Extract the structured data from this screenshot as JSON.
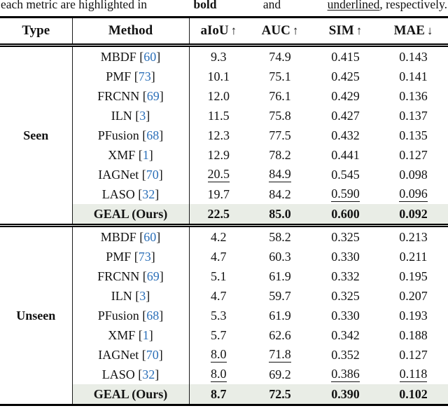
{
  "caption": {
    "part1": "each metric are highlighted in",
    "bold_word": "bold",
    "part2": "and",
    "underlined_word": "underlined",
    "part3": ", respectively."
  },
  "colors": {
    "accent_blue": "#2b6fb8",
    "highlight_row": "#e9ede6",
    "rule_black": "#000000"
  },
  "table": {
    "headers": [
      {
        "label": "Type",
        "arrow": ""
      },
      {
        "label": "Method",
        "arrow": ""
      },
      {
        "label": "aIoU",
        "arrow": "↑"
      },
      {
        "label": "AUC",
        "arrow": "↑"
      },
      {
        "label": "SIM",
        "arrow": "↑"
      },
      {
        "label": "MAE",
        "arrow": "↓"
      }
    ],
    "sections": [
      {
        "type": "Seen",
        "rows": [
          {
            "method": "MBDF",
            "ref": "60",
            "values": [
              "9.3",
              "74.9",
              "0.415",
              "0.143"
            ],
            "underline": [
              false,
              false,
              false,
              false
            ],
            "bold": false,
            "highlight": false
          },
          {
            "method": "PMF",
            "ref": "73",
            "values": [
              "10.1",
              "75.1",
              "0.425",
              "0.141"
            ],
            "underline": [
              false,
              false,
              false,
              false
            ],
            "bold": false,
            "highlight": false
          },
          {
            "method": "FRCNN",
            "ref": "69",
            "values": [
              "12.0",
              "76.1",
              "0.429",
              "0.136"
            ],
            "underline": [
              false,
              false,
              false,
              false
            ],
            "bold": false,
            "highlight": false
          },
          {
            "method": "ILN",
            "ref": "3",
            "values": [
              "11.5",
              "75.8",
              "0.427",
              "0.137"
            ],
            "underline": [
              false,
              false,
              false,
              false
            ],
            "bold": false,
            "highlight": false
          },
          {
            "method": "PFusion",
            "ref": "68",
            "values": [
              "12.3",
              "77.5",
              "0.432",
              "0.135"
            ],
            "underline": [
              false,
              false,
              false,
              false
            ],
            "bold": false,
            "highlight": false
          },
          {
            "method": "XMF",
            "ref": "1",
            "values": [
              "12.9",
              "78.2",
              "0.441",
              "0.127"
            ],
            "underline": [
              false,
              false,
              false,
              false
            ],
            "bold": false,
            "highlight": false
          },
          {
            "method": "IAGNet",
            "ref": "70",
            "values": [
              "20.5",
              "84.9",
              "0.545",
              "0.098"
            ],
            "underline": [
              true,
              true,
              false,
              false
            ],
            "bold": false,
            "highlight": false
          },
          {
            "method": "LASO",
            "ref": "32",
            "values": [
              "19.7",
              "84.2",
              "0.590",
              "0.096"
            ],
            "underline": [
              false,
              false,
              true,
              true
            ],
            "bold": false,
            "highlight": false
          },
          {
            "method": "GEAL (Ours)",
            "ref": null,
            "values": [
              "22.5",
              "85.0",
              "0.600",
              "0.092"
            ],
            "underline": [
              false,
              false,
              false,
              false
            ],
            "bold": true,
            "highlight": true
          }
        ]
      },
      {
        "type": "Unseen",
        "rows": [
          {
            "method": "MBDF",
            "ref": "60",
            "values": [
              "4.2",
              "58.2",
              "0.325",
              "0.213"
            ],
            "underline": [
              false,
              false,
              false,
              false
            ],
            "bold": false,
            "highlight": false
          },
          {
            "method": "PMF",
            "ref": "73",
            "values": [
              "4.7",
              "60.3",
              "0.330",
              "0.211"
            ],
            "underline": [
              false,
              false,
              false,
              false
            ],
            "bold": false,
            "highlight": false
          },
          {
            "method": "FRCNN",
            "ref": "69",
            "values": [
              "5.1",
              "61.9",
              "0.332",
              "0.195"
            ],
            "underline": [
              false,
              false,
              false,
              false
            ],
            "bold": false,
            "highlight": false
          },
          {
            "method": "ILN",
            "ref": "3",
            "values": [
              "4.7",
              "59.7",
              "0.325",
              "0.207"
            ],
            "underline": [
              false,
              false,
              false,
              false
            ],
            "bold": false,
            "highlight": false
          },
          {
            "method": "PFusion",
            "ref": "68",
            "values": [
              "5.3",
              "61.9",
              "0.330",
              "0.193"
            ],
            "underline": [
              false,
              false,
              false,
              false
            ],
            "bold": false,
            "highlight": false
          },
          {
            "method": "XMF",
            "ref": "1",
            "values": [
              "5.7",
              "62.6",
              "0.342",
              "0.188"
            ],
            "underline": [
              false,
              false,
              false,
              false
            ],
            "bold": false,
            "highlight": false
          },
          {
            "method": "IAGNet",
            "ref": "70",
            "values": [
              "8.0",
              "71.8",
              "0.352",
              "0.127"
            ],
            "underline": [
              true,
              true,
              false,
              false
            ],
            "bold": false,
            "highlight": false
          },
          {
            "method": "LASO",
            "ref": "32",
            "values": [
              "8.0",
              "69.2",
              "0.386",
              "0.118"
            ],
            "underline": [
              true,
              false,
              true,
              true
            ],
            "bold": false,
            "highlight": false
          },
          {
            "method": "GEAL (Ours)",
            "ref": null,
            "values": [
              "8.7",
              "72.5",
              "0.390",
              "0.102"
            ],
            "underline": [
              false,
              false,
              false,
              false
            ],
            "bold": true,
            "highlight": true
          }
        ]
      }
    ]
  }
}
